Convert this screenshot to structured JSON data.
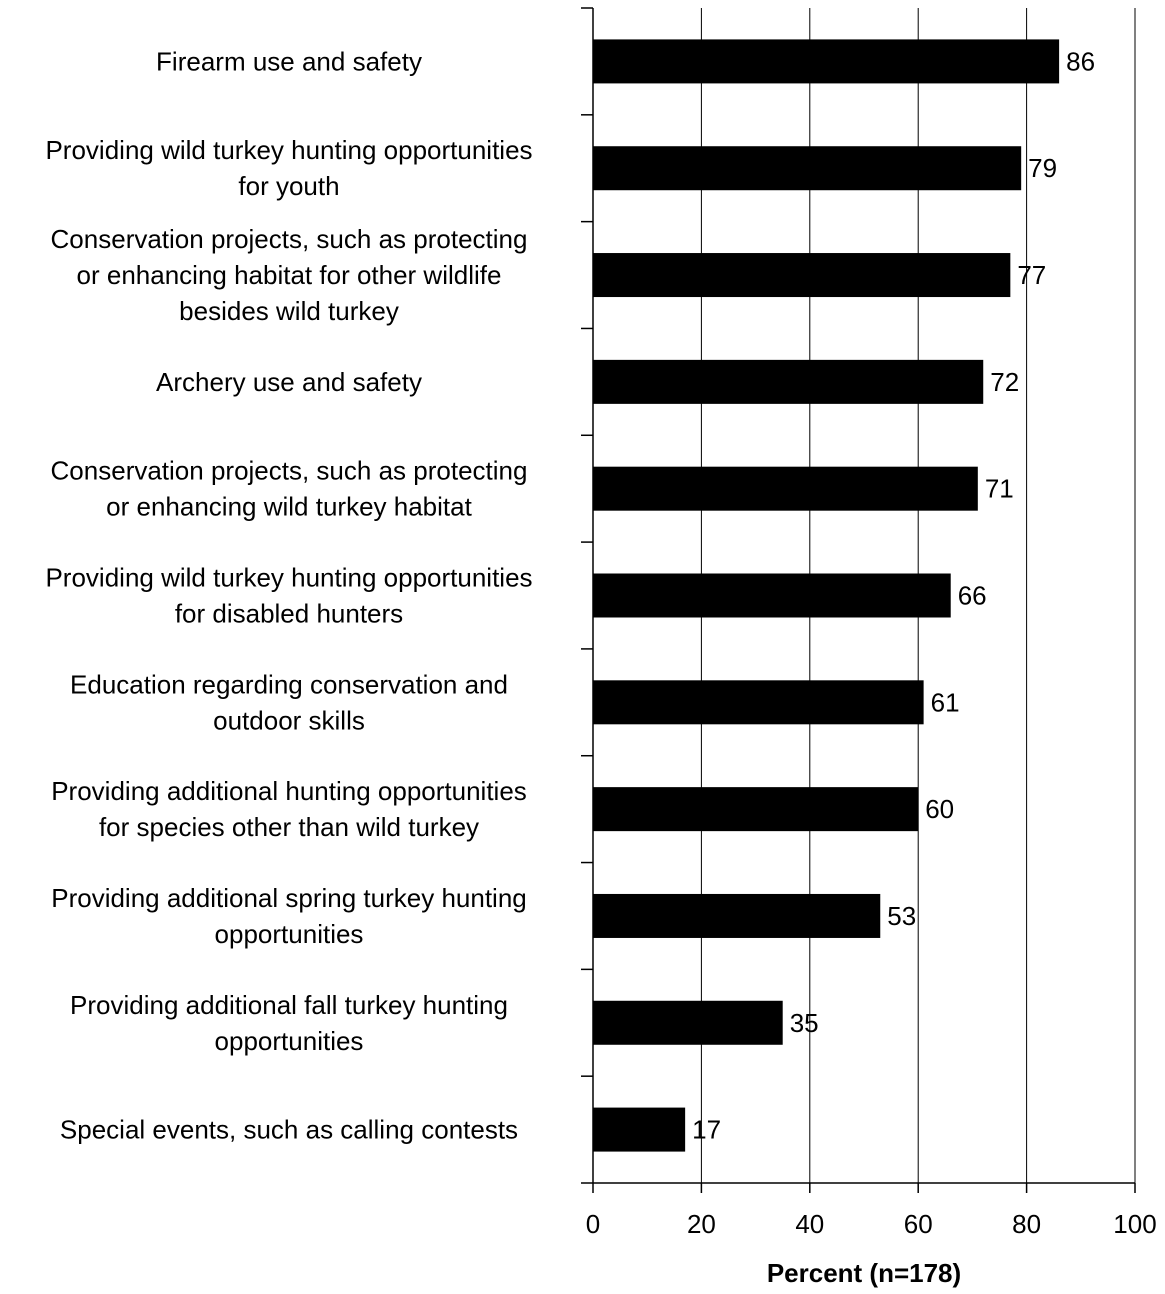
{
  "chart_data": {
    "type": "bar",
    "orientation": "horizontal",
    "categories": [
      [
        "Firearm use and safety"
      ],
      [
        "Providing wild turkey hunting opportunities",
        "for youth"
      ],
      [
        "Conservation projects, such as protecting",
        "or enhancing habitat for other wildlife",
        "besides wild turkey"
      ],
      [
        "Archery use and safety"
      ],
      [
        "Conservation projects, such as protecting",
        "or enhancing wild turkey habitat"
      ],
      [
        "Providing wild turkey hunting opportunities",
        "for disabled hunters"
      ],
      [
        "Education regarding conservation and",
        "outdoor skills"
      ],
      [
        "Providing additional hunting opportunities",
        "for species other than wild turkey"
      ],
      [
        "Providing additional spring turkey hunting",
        "opportunities"
      ],
      [
        "Providing additional fall turkey hunting",
        "opportunities"
      ],
      [
        "Special events, such as calling contests"
      ]
    ],
    "values": [
      86,
      79,
      77,
      72,
      71,
      66,
      61,
      60,
      53,
      35,
      17
    ],
    "value_labels": [
      "86",
      "79",
      "77",
      "72",
      "71",
      "66",
      "61",
      "60",
      "53",
      "35",
      "17"
    ],
    "xlabel": "Percent (n=178)",
    "xlim": [
      0,
      100
    ],
    "xticks": [
      0,
      20,
      40,
      60,
      80,
      100
    ],
    "xtick_labels": [
      "0",
      "20",
      "40",
      "60",
      "80",
      "100"
    ],
    "grid": "vertical",
    "bar_color": "#000000",
    "legend": "none"
  }
}
